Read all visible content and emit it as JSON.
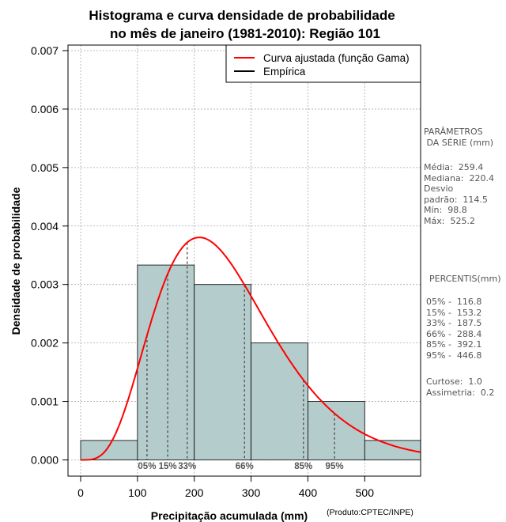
{
  "chart_data": {
    "type": "bar",
    "title": [
      "Histograma e curva densidade de probabilidade",
      "no mês de janeiro (1981-2010): Região 101"
    ],
    "xlabel": "Precipitação acumulada (mm)",
    "ylabel": "Densidade de probabilidade",
    "credit": "(Produto:CPTEC/INPE)",
    "xlim": [
      0,
      600
    ],
    "ylim": [
      0,
      0.007
    ],
    "xticks": [
      0,
      100,
      200,
      300,
      400,
      500
    ],
    "yticks": [
      "0.000",
      "0.001",
      "0.002",
      "0.003",
      "0.004",
      "0.005",
      "0.006",
      "0.007"
    ],
    "grid": true,
    "bins": [
      {
        "x0": 0,
        "x1": 100,
        "density": 0.000333
      },
      {
        "x0": 100,
        "x1": 200,
        "density": 0.003333
      },
      {
        "x0": 200,
        "x1": 300,
        "density": 0.003
      },
      {
        "x0": 300,
        "x1": 400,
        "density": 0.002
      },
      {
        "x0": 400,
        "x1": 500,
        "density": 0.001
      },
      {
        "x0": 500,
        "x1": 600,
        "density": 0.000333
      }
    ],
    "gamma_fit": {
      "name": "Curva ajustada (função Gama)",
      "mean": 259.4,
      "sd": 114.5
    },
    "legend": [
      {
        "label": "Curva ajustada (função Gama)",
        "color": "#ff0000"
      },
      {
        "label": "Empírica",
        "color": "#000000"
      }
    ],
    "percentile_lines": [
      {
        "label": "05%",
        "value": 116.8
      },
      {
        "label": "15%",
        "value": 153.2
      },
      {
        "label": "33%",
        "value": 187.5
      },
      {
        "label": "66%",
        "value": 288.4
      },
      {
        "label": "85%",
        "value": 392.1
      },
      {
        "label": "95%",
        "value": 446.8
      }
    ],
    "colors": {
      "bar_fill": "#b4cccb",
      "curve": "#ff0000",
      "grid": "#aaaaaa",
      "percentile": "#555555"
    }
  },
  "side_panel": {
    "param_title": "PARÂMETROS\n DA SÉRIE (mm)",
    "stats": "Média:  259.4\nMediana:  220.4\nDesvio\npadrão:  114.5\nMín:  98.8\nMáx:  525.2",
    "pct_title": "PERCENTIS(mm)",
    "pcts": "05% -  116.8\n15% -  153.2\n33% -  187.5\n66% -  288.4\n85% -  392.1\n95% -  446.8",
    "extras": "Curtose:  1.0\nAssimetria:  0.2"
  }
}
